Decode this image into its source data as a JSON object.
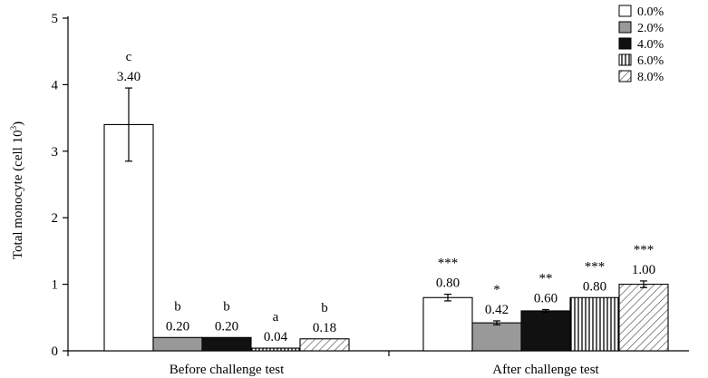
{
  "chart_data": {
    "type": "bar",
    "ylabel": "Total monocyte (cell 10",
    "ylabel_sup": "3",
    "ylabel_close": ")",
    "xlabel": "",
    "title": "",
    "ylim": [
      0,
      5
    ],
    "yticks": [
      "0",
      "1",
      "2",
      "3",
      "4",
      "5"
    ],
    "legend_position": "top-right",
    "groups": [
      "Before challenge test",
      "After challenge test"
    ],
    "series": [
      {
        "name": "0.0%",
        "pattern": "white",
        "values": [
          3.4,
          0.8
        ],
        "errors": [
          0.55,
          0.05
        ],
        "value_labels": [
          "3.40",
          "0.80"
        ],
        "sig_labels": [
          "c",
          "***"
        ]
      },
      {
        "name": "2.0%",
        "pattern": "gray",
        "values": [
          0.2,
          0.42
        ],
        "errors": [
          0,
          0.03
        ],
        "value_labels": [
          "0.20",
          "0.42"
        ],
        "sig_labels": [
          "b",
          "*"
        ]
      },
      {
        "name": "4.0%",
        "pattern": "black",
        "values": [
          0.2,
          0.6
        ],
        "errors": [
          0,
          0.02
        ],
        "value_labels": [
          "0.20",
          "0.60"
        ],
        "sig_labels": [
          "b",
          "**"
        ]
      },
      {
        "name": "6.0%",
        "pattern": "vertical-lines",
        "values": [
          0.04,
          0.8
        ],
        "errors": [
          0,
          0
        ],
        "value_labels": [
          "0.04",
          "0.80"
        ],
        "sig_labels": [
          "a",
          "***"
        ]
      },
      {
        "name": "8.0%",
        "pattern": "diagonal-lines",
        "values": [
          0.18,
          1.0
        ],
        "errors": [
          0,
          0.05
        ],
        "value_labels": [
          "0.18",
          "1.00"
        ],
        "sig_labels": [
          "b",
          "***"
        ]
      }
    ],
    "colors": {
      "gray": "#999999",
      "black": "#111111",
      "white": "#ffffff",
      "line": "#000000"
    }
  }
}
